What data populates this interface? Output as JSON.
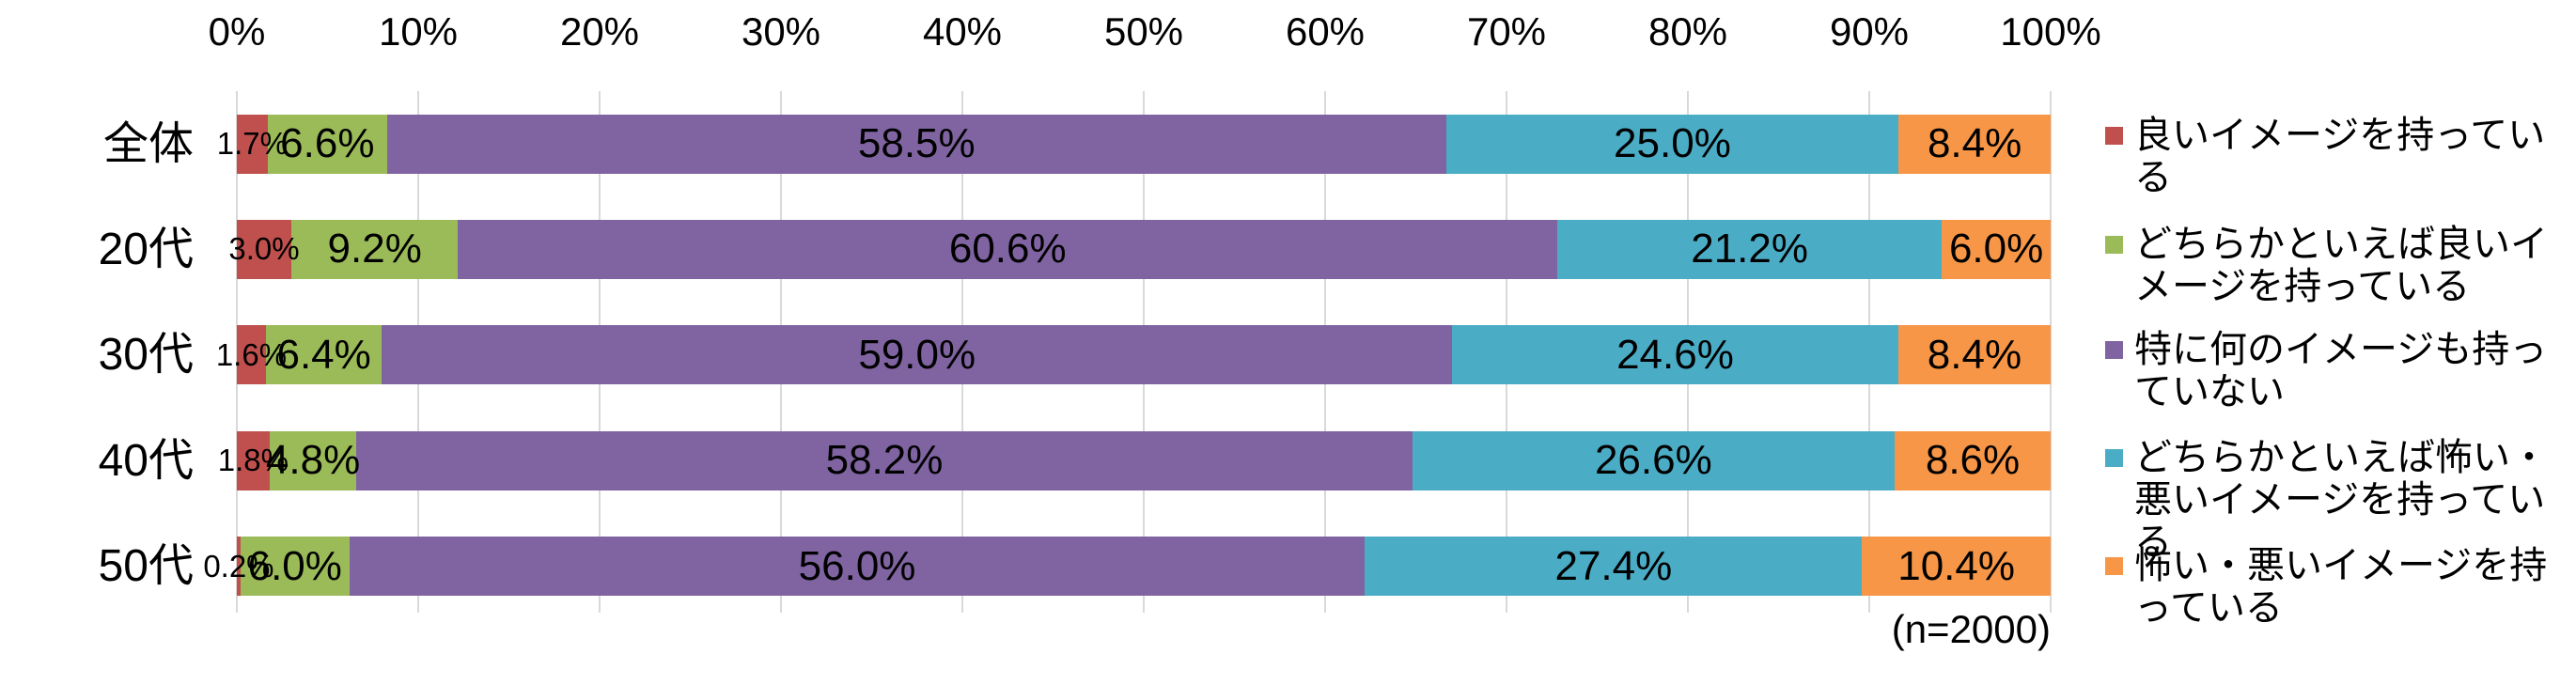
{
  "chart_data": {
    "type": "bar",
    "variant": "horizontal-stacked-100",
    "title": "",
    "categories": [
      "全体",
      "20代",
      "30代",
      "40代",
      "50代"
    ],
    "series": [
      {
        "name": "良いイメージを持っている",
        "color": "#c0504d",
        "values": [
          1.7,
          3.0,
          1.6,
          1.8,
          0.2
        ]
      },
      {
        "name": "どちらかといえば良いイメージを持っている",
        "color": "#9bbb59",
        "values": [
          6.6,
          9.2,
          6.4,
          4.8,
          6.0
        ]
      },
      {
        "name": "特に何のイメージも持っていない",
        "color": "#8064a2",
        "values": [
          58.5,
          60.6,
          59.0,
          58.2,
          56.0
        ]
      },
      {
        "name": "どちらかといえば怖い・悪いイメージを持っている",
        "color": "#4bacc6",
        "values": [
          25.0,
          21.2,
          24.6,
          26.6,
          27.4
        ]
      },
      {
        "name": "怖い・悪いイメージを持っている",
        "color": "#f79646",
        "values": [
          8.4,
          6.0,
          8.4,
          8.6,
          10.4
        ]
      }
    ],
    "x_axis": {
      "min": 0,
      "max": 100,
      "tick_step": 10,
      "ticks": [
        "0%",
        "10%",
        "20%",
        "30%",
        "40%",
        "50%",
        "60%",
        "70%",
        "80%",
        "90%",
        "100%"
      ]
    },
    "data_label_format": "percent-one-decimal",
    "grid": true,
    "gridline_color": "#d9d9d9",
    "legend_position": "right",
    "note": "(n=2000)"
  }
}
